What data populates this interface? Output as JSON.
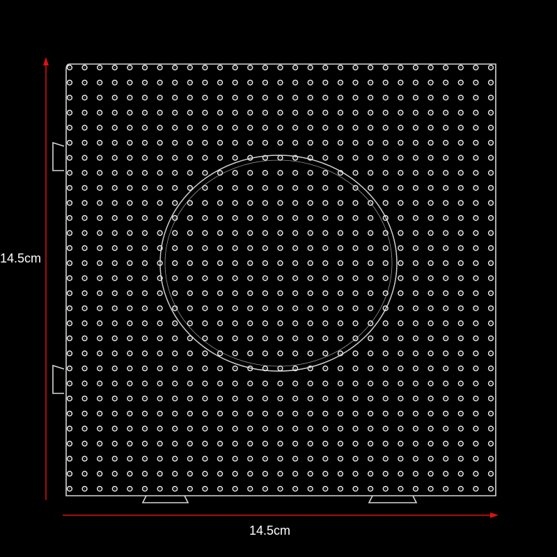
{
  "dimensions": {
    "height_label": "14.5cm",
    "width_label": "14.5cm"
  },
  "colors": {
    "background": "#000000",
    "arrow": "#e01010",
    "peg": "#e8e8e8",
    "text": "#ffffff"
  }
}
